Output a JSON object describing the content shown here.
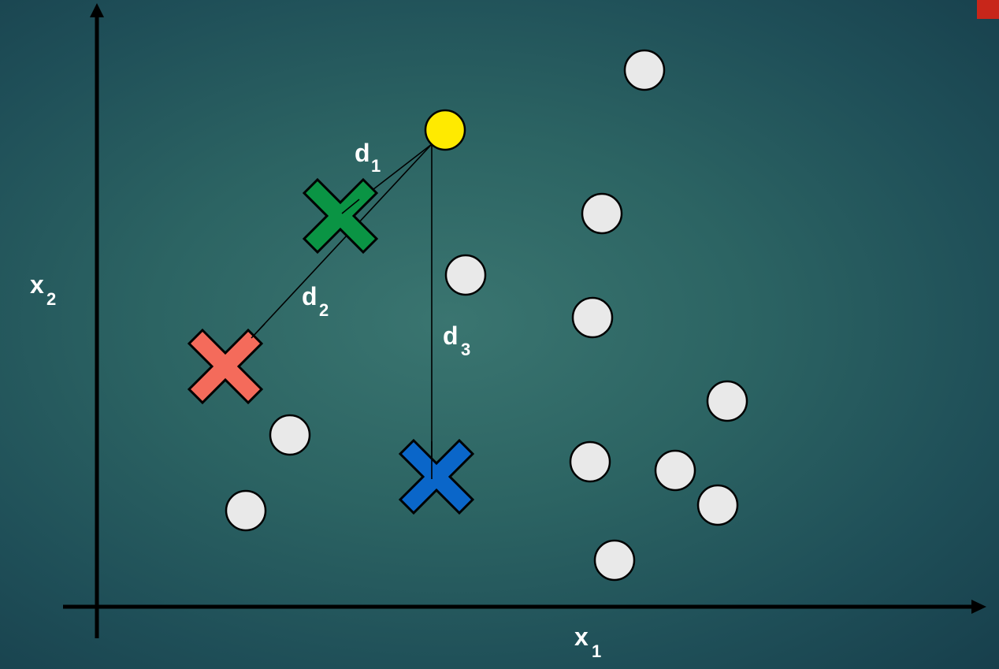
{
  "axes": {
    "x_label": "x",
    "x_subscript": "1",
    "y_label": "x",
    "y_subscript": "2"
  },
  "distances": [
    {
      "label": "d",
      "subscript": "1",
      "from": "query-point",
      "to": "green-centroid"
    },
    {
      "label": "d",
      "subscript": "2",
      "from": "query-point",
      "to": "red-centroid"
    },
    {
      "label": "d",
      "subscript": "3",
      "from": "query-point",
      "to": "blue-centroid"
    }
  ],
  "colors": {
    "background": "#2c6463",
    "axis": "#000000",
    "query_point": "#ffea00",
    "data_point": "#e9e9e9",
    "green_centroid": "#0a9444",
    "red_centroid": "#f46b5b",
    "blue_centroid": "#0a66c9",
    "corner_marker": "#c8261a"
  },
  "icons": {
    "centroids": "x-mark-icon",
    "points": "circle-icon"
  }
}
